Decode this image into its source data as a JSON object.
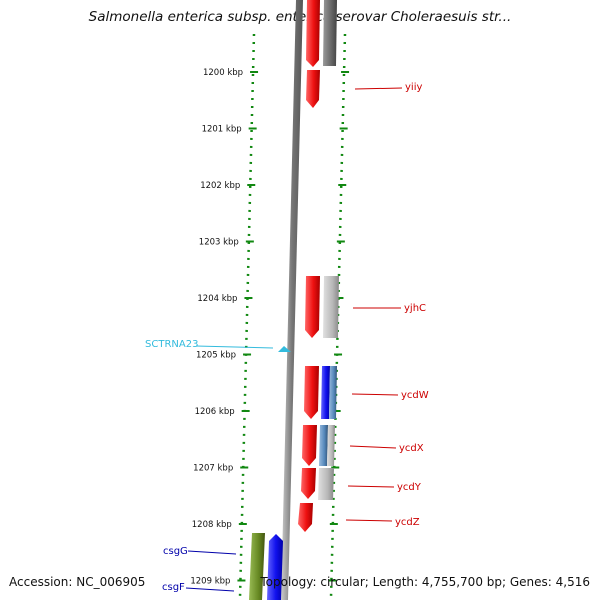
{
  "title": "Salmonella enterica subsp. enterica serovar Choleraesuis str...",
  "footer": {
    "accession": "Accession: NC_006905",
    "summary": "Topology: circular; Length: 4,755,700 bp; Genes: 4,516"
  },
  "ruler": {
    "unit": "kbp",
    "ticks": [
      1200,
      1201,
      1202,
      1203,
      1204,
      1205,
      1206,
      1207,
      1208,
      1209
    ]
  },
  "colors": {
    "forward_gene": "#ee1111",
    "reverse_gene": "#1111ee",
    "pseudo_gray": "#aaaaaa",
    "dark_gray": "#666666",
    "steel_blue": "#5588bb",
    "olive": "#668822",
    "trna": "#33bbdd",
    "label_red": "#cc0000",
    "label_blue": "#0000aa",
    "ruler_green": "#118811"
  },
  "features": [
    {
      "name": "yiiy",
      "label_color": "label_red"
    },
    {
      "name": "yjhC",
      "label_color": "label_red"
    },
    {
      "name": "SCTRNA23",
      "label_color": "trna"
    },
    {
      "name": "ycdW",
      "label_color": "label_red"
    },
    {
      "name": "ycdX",
      "label_color": "label_red"
    },
    {
      "name": "ycdY",
      "label_color": "label_red"
    },
    {
      "name": "ycdZ",
      "label_color": "label_red"
    },
    {
      "name": "csgG",
      "label_color": "label_blue"
    },
    {
      "name": "csgF",
      "label_color": "label_blue"
    }
  ]
}
